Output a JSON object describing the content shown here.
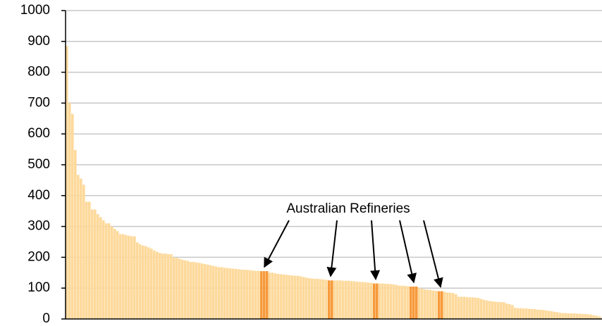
{
  "chart_data": {
    "type": "bar",
    "annotation": "Australian Refineries",
    "values": [
      885,
      700,
      665,
      548,
      467,
      455,
      435,
      380,
      380,
      355,
      355,
      340,
      330,
      320,
      310,
      310,
      300,
      292,
      285,
      275,
      275,
      272,
      270,
      268,
      268,
      248,
      242,
      238,
      236,
      232,
      228,
      222,
      218,
      214,
      212,
      212,
      210,
      210,
      200,
      198,
      195,
      192,
      190,
      188,
      185,
      185,
      183,
      182,
      180,
      178,
      176,
      174,
      172,
      170,
      168,
      168,
      166,
      165,
      164,
      163,
      162,
      161,
      160,
      160,
      159,
      158,
      157,
      156,
      156,
      155,
      155,
      155,
      150,
      150,
      148,
      146,
      145,
      144,
      143,
      142,
      141,
      140,
      140,
      138,
      136,
      134,
      132,
      131,
      130,
      130,
      129,
      128,
      127,
      125,
      125,
      125,
      125,
      125,
      124,
      124,
      124,
      123,
      122,
      121,
      120,
      120,
      119,
      118,
      117,
      115,
      115,
      115,
      115,
      114,
      114,
      113,
      112,
      110,
      108,
      108,
      107,
      106,
      105,
      105,
      105,
      100,
      98,
      96,
      95,
      94,
      92,
      91,
      90,
      90,
      88,
      86,
      85,
      84,
      80,
      72,
      72,
      72,
      71,
      70,
      70,
      69,
      68,
      65,
      62,
      60,
      58,
      57,
      56,
      55,
      55,
      54,
      50,
      48,
      45,
      36,
      35,
      35,
      34,
      34,
      33,
      32,
      32,
      30,
      30,
      29,
      28,
      26,
      25,
      23,
      22,
      20,
      19,
      19,
      18,
      18,
      18,
      17,
      17,
      16,
      16,
      15,
      14,
      12,
      10,
      8
    ],
    "color": "#fdd99b",
    "highlight": [
      69,
      70,
      71,
      93,
      94,
      109,
      110,
      122,
      123,
      124,
      132,
      133
    ],
    "highlight_color": "#f79a3a",
    "ylim": [
      0,
      1000
    ],
    "yticks": [
      0,
      100,
      200,
      300,
      400,
      500,
      600,
      700,
      800,
      900,
      1000
    ],
    "grid": true
  }
}
